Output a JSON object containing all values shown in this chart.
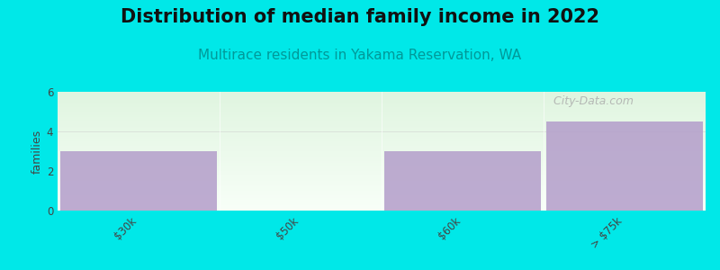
{
  "title": "Distribution of median family income in 2022",
  "subtitle": "Multirace residents in Yakama Reservation, WA",
  "categories": [
    "$30k",
    "$50k",
    "$60k",
    "> $75k"
  ],
  "values": [
    3,
    0,
    3,
    4.5
  ],
  "bar_color": "#b39dca",
  "bar_alpha": 0.85,
  "figure_bg": "#00e8e8",
  "plot_bg_top_color": "#e0f5e0",
  "plot_bg_bottom_color": "#f8fff8",
  "ylabel": "families",
  "ylim": [
    0,
    6
  ],
  "yticks": [
    0,
    2,
    4,
    6
  ],
  "title_fontsize": 15,
  "subtitle_fontsize": 11,
  "subtitle_color": "#009999",
  "title_color": "#111111",
  "watermark": " City-Data.com",
  "watermark_color": "#aaaaaa",
  "tick_label_color": "#444444",
  "tick_label_fontsize": 8.5,
  "ylabel_fontsize": 9,
  "ylabel_color": "#444444"
}
